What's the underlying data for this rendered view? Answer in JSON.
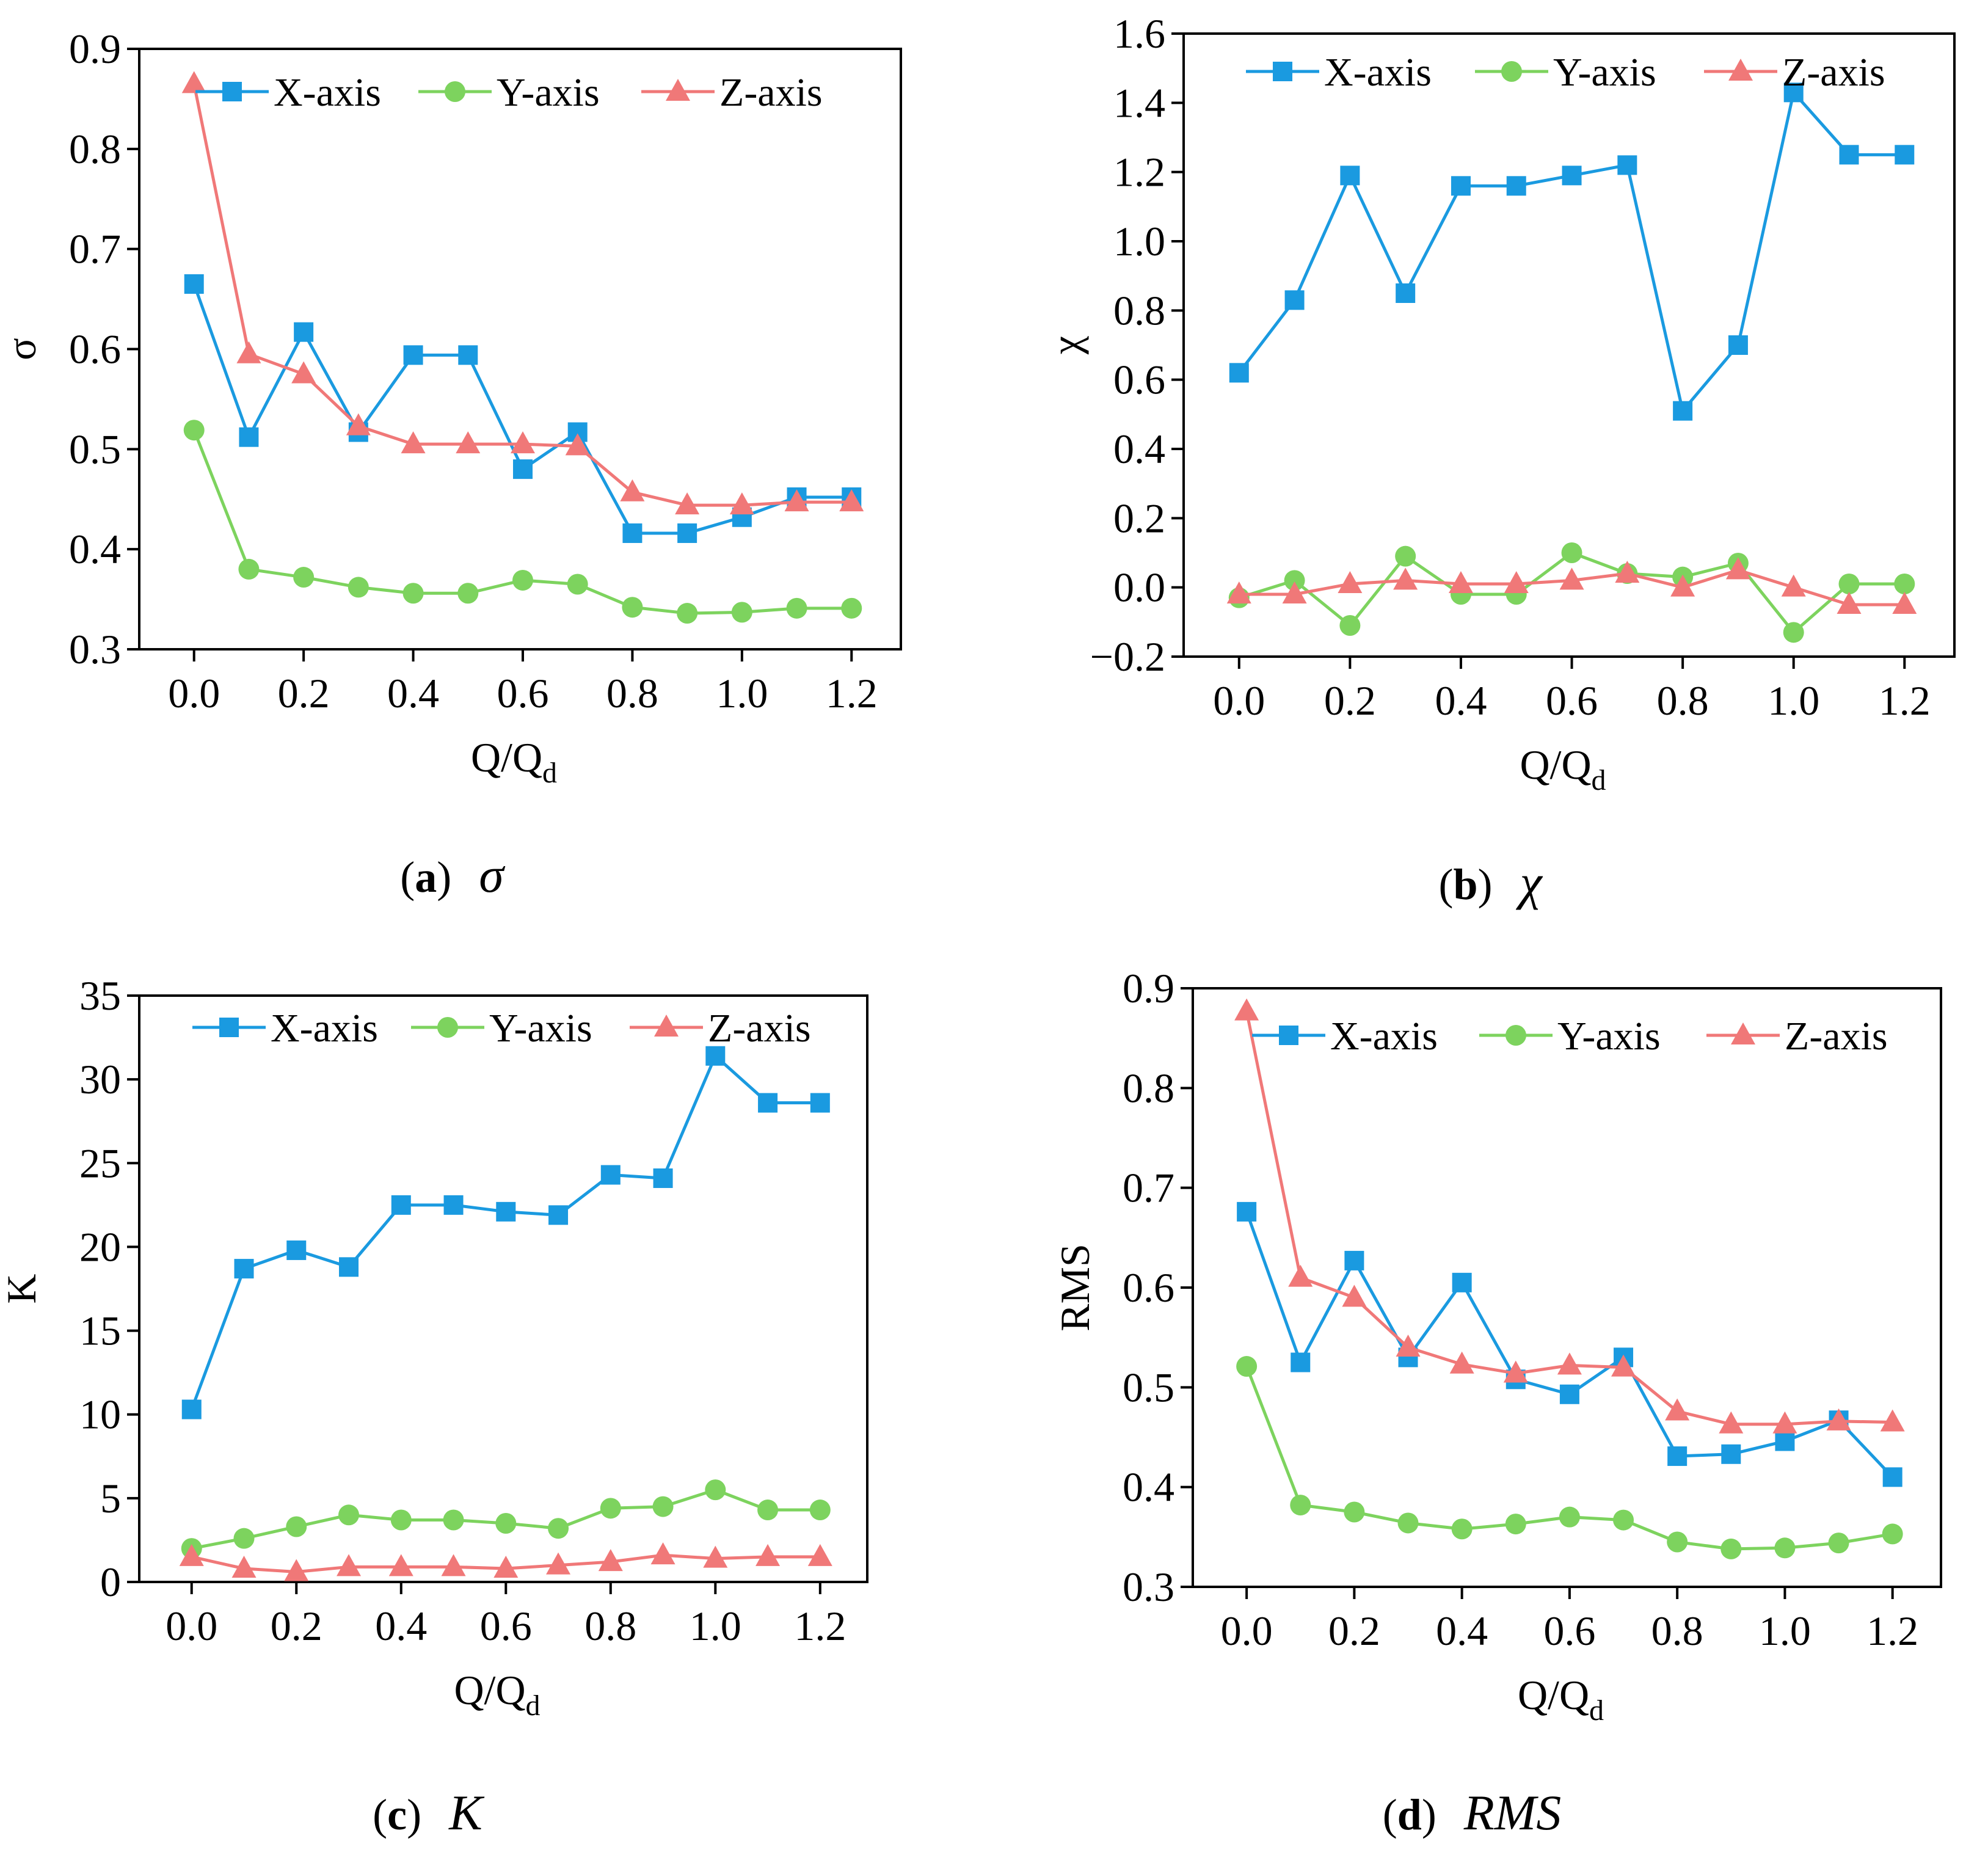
{
  "chart_data": [
    {
      "id": "a",
      "type": "line",
      "caption": {
        "open": "(",
        "letter": "a",
        "close": ")",
        "symbol": "σ"
      },
      "xlabel": {
        "main": "Q/Q",
        "sub": "d"
      },
      "ylabel": "σ",
      "xlim": [
        -0.1,
        1.29
      ],
      "ylim": [
        0.3,
        0.9
      ],
      "xticks": [
        0.0,
        0.2,
        0.4,
        0.6,
        0.8,
        1.0,
        1.2
      ],
      "xtick_labels": [
        "0.0",
        "0.2",
        "0.4",
        "0.6",
        "0.8",
        "1.0",
        "1.2"
      ],
      "yticks": [
        0.3,
        0.4,
        0.5,
        0.6,
        0.7,
        0.8,
        0.9
      ],
      "ytick_labels": [
        "0.3",
        "0.4",
        "0.5",
        "0.6",
        "0.7",
        "0.8",
        "0.9"
      ],
      "x": [
        0.0,
        0.1,
        0.2,
        0.3,
        0.4,
        0.5,
        0.6,
        0.7,
        0.8,
        0.9,
        1.0,
        1.1,
        1.2
      ],
      "series": [
        {
          "name": "X-axis",
          "color": "#1a9ae0",
          "marker": "square",
          "values": [
            0.665,
            0.512,
            0.617,
            0.517,
            0.594,
            0.594,
            0.48,
            0.517,
            0.416,
            0.416,
            0.432,
            0.452,
            0.452
          ]
        },
        {
          "name": "Y-axis",
          "color": "#7dd35e",
          "marker": "circle",
          "values": [
            0.519,
            0.38,
            0.372,
            0.362,
            0.356,
            0.356,
            0.369,
            0.365,
            0.342,
            0.336,
            0.337,
            0.341,
            0.341
          ]
        },
        {
          "name": "Z-axis",
          "color": "#f07878",
          "marker": "triangle",
          "values": [
            0.865,
            0.595,
            0.575,
            0.523,
            0.505,
            0.505,
            0.505,
            0.503,
            0.457,
            0.444,
            0.444,
            0.447,
            0.447
          ]
        }
      ]
    },
    {
      "id": "b",
      "type": "line",
      "caption": {
        "open": "(",
        "letter": "b",
        "close": ")",
        "symbol": "χ"
      },
      "xlabel": {
        "main": "Q/Q",
        "sub": "d"
      },
      "ylabel": "χ",
      "xlim": [
        -0.1,
        1.29
      ],
      "ylim": [
        -0.2,
        1.6
      ],
      "xticks": [
        0.0,
        0.2,
        0.4,
        0.6,
        0.8,
        1.0,
        1.2
      ],
      "xtick_labels": [
        "0.0",
        "0.2",
        "0.4",
        "0.6",
        "0.8",
        "1.0",
        "1.2"
      ],
      "yticks": [
        -0.2,
        0.0,
        0.2,
        0.4,
        0.6,
        0.8,
        1.0,
        1.2,
        1.4,
        1.6
      ],
      "ytick_labels": [
        "−0.2",
        "0.0",
        "0.2",
        "0.4",
        "0.6",
        "0.8",
        "1.0",
        "1.2",
        "1.4",
        "1.6"
      ],
      "x": [
        0.0,
        0.1,
        0.2,
        0.3,
        0.4,
        0.5,
        0.6,
        0.7,
        0.8,
        0.9,
        1.0,
        1.1,
        1.2
      ],
      "series": [
        {
          "name": "X-axis",
          "color": "#1a9ae0",
          "marker": "square",
          "values": [
            0.62,
            0.83,
            1.19,
            0.85,
            1.16,
            1.16,
            1.19,
            1.22,
            0.51,
            0.7,
            1.43,
            1.25,
            1.25
          ]
        },
        {
          "name": "Y-axis",
          "color": "#7dd35e",
          "marker": "circle",
          "values": [
            -0.03,
            0.02,
            -0.11,
            0.09,
            -0.02,
            -0.02,
            0.1,
            0.04,
            0.03,
            0.07,
            -0.13,
            0.01,
            0.01
          ]
        },
        {
          "name": "Z-axis",
          "color": "#f07878",
          "marker": "triangle",
          "values": [
            -0.02,
            -0.02,
            0.01,
            0.02,
            0.01,
            0.01,
            0.02,
            0.04,
            0.0,
            0.05,
            0.0,
            -0.05,
            -0.05
          ]
        }
      ]
    },
    {
      "id": "c",
      "type": "line",
      "caption": {
        "open": "(",
        "letter": "c",
        "close": ")",
        "symbol": "K"
      },
      "xlabel": {
        "main": "Q/Q",
        "sub": "d"
      },
      "ylabel": "K",
      "xlim": [
        -0.1,
        1.29
      ],
      "ylim": [
        0,
        35
      ],
      "xticks": [
        0.0,
        0.2,
        0.4,
        0.6,
        0.8,
        1.0,
        1.2
      ],
      "xtick_labels": [
        "0.0",
        "0.2",
        "0.4",
        "0.6",
        "0.8",
        "1.0",
        "1.2"
      ],
      "yticks": [
        0,
        5,
        10,
        15,
        20,
        25,
        30,
        35
      ],
      "ytick_labels": [
        "0",
        "5",
        "10",
        "15",
        "20",
        "25",
        "30",
        "35"
      ],
      "x": [
        0.0,
        0.1,
        0.2,
        0.3,
        0.4,
        0.5,
        0.6,
        0.7,
        0.8,
        0.9,
        1.0,
        1.1,
        1.2
      ],
      "series": [
        {
          "name": "X-axis",
          "color": "#1a9ae0",
          "marker": "square",
          "values": [
            10.3,
            18.7,
            19.8,
            18.8,
            22.5,
            22.5,
            22.1,
            21.9,
            24.3,
            24.1,
            31.4,
            28.6,
            28.6
          ]
        },
        {
          "name": "Y-axis",
          "color": "#7dd35e",
          "marker": "circle",
          "values": [
            2.0,
            2.6,
            3.3,
            4.0,
            3.7,
            3.7,
            3.5,
            3.2,
            4.4,
            4.5,
            5.5,
            4.3,
            4.3
          ]
        },
        {
          "name": "Z-axis",
          "color": "#f07878",
          "marker": "triangle",
          "values": [
            1.5,
            0.8,
            0.6,
            0.9,
            0.9,
            0.9,
            0.8,
            1.0,
            1.2,
            1.6,
            1.4,
            1.5,
            1.5
          ]
        }
      ]
    },
    {
      "id": "d",
      "type": "line",
      "caption": {
        "open": "(",
        "letter": "d",
        "close": ")",
        "symbol": "RMS"
      },
      "xlabel": {
        "main": "Q/Q",
        "sub": "d"
      },
      "ylabel": "RMS",
      "xlim": [
        -0.1,
        1.29
      ],
      "ylim": [
        0.3,
        0.9
      ],
      "xticks": [
        0.0,
        0.2,
        0.4,
        0.6,
        0.8,
        1.0,
        1.2
      ],
      "xtick_labels": [
        "0.0",
        "0.2",
        "0.4",
        "0.6",
        "0.8",
        "1.0",
        "1.2"
      ],
      "yticks": [
        0.3,
        0.4,
        0.5,
        0.6,
        0.7,
        0.8,
        0.9
      ],
      "ytick_labels": [
        "0.3",
        "0.4",
        "0.5",
        "0.6",
        "0.7",
        "0.8",
        "0.9"
      ],
      "x": [
        0.0,
        0.1,
        0.2,
        0.3,
        0.4,
        0.5,
        0.6,
        0.7,
        0.8,
        0.9,
        1.0,
        1.1,
        1.2
      ],
      "series": [
        {
          "name": "X-axis",
          "color": "#1a9ae0",
          "marker": "square",
          "values": [
            0.676,
            0.525,
            0.627,
            0.53,
            0.605,
            0.508,
            0.493,
            0.53,
            0.431,
            0.433,
            0.446,
            0.467,
            0.41
          ]
        },
        {
          "name": "Y-axis",
          "color": "#7dd35e",
          "marker": "circle",
          "values": [
            0.521,
            0.382,
            0.375,
            0.364,
            0.358,
            0.363,
            0.37,
            0.367,
            0.345,
            0.338,
            0.339,
            0.344,
            0.353
          ]
        },
        {
          "name": "Z-axis",
          "color": "#f07878",
          "marker": "triangle",
          "values": [
            0.877,
            0.61,
            0.59,
            0.54,
            0.523,
            0.514,
            0.522,
            0.52,
            0.476,
            0.463,
            0.463,
            0.466,
            0.465
          ]
        }
      ]
    }
  ]
}
